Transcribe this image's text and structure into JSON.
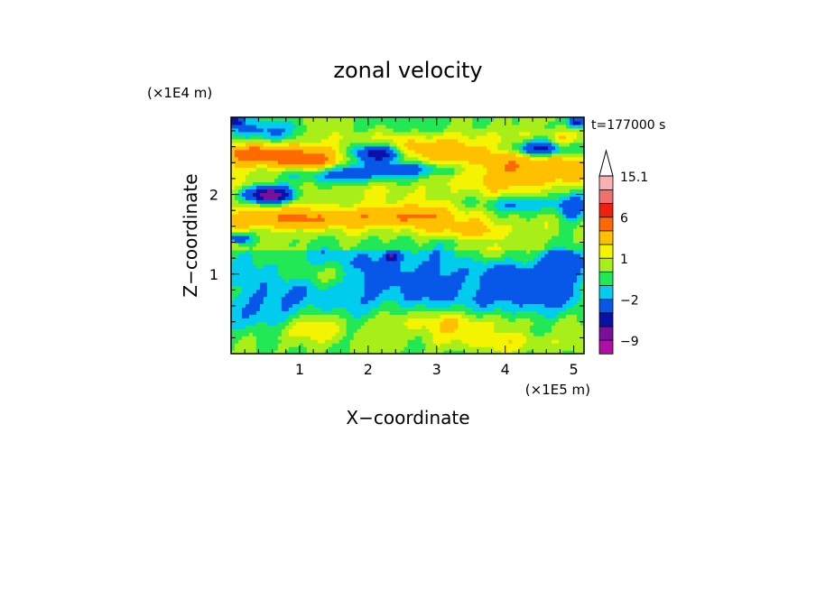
{
  "chart_data": {
    "type": "heatmap",
    "title": "zonal velocity",
    "xlabel": "X−coordinate",
    "ylabel": "Z−coordinate",
    "x_unit": "(×1E5 m)",
    "y_unit": "(×1E4 m)",
    "time_label": "t=177000 s",
    "xlim": [
      0,
      5.15
    ],
    "ylim": [
      0,
      2.97
    ],
    "x_ticks": [
      1,
      2,
      3,
      4,
      5
    ],
    "y_ticks": [
      1,
      2
    ],
    "colorbar": {
      "bands": [
        {
          "min": -99,
          "max": -12,
          "color": "#ee10bb"
        },
        {
          "min": -12,
          "max": -9,
          "color": "#b00fa6"
        },
        {
          "min": -9,
          "max": -6,
          "color": "#7a0f9a"
        },
        {
          "min": -6,
          "max": -4,
          "color": "#0a10a8"
        },
        {
          "min": -4,
          "max": -2,
          "color": "#0757e8"
        },
        {
          "min": -2,
          "max": -1,
          "color": "#00ccee"
        },
        {
          "min": -1,
          "max": 0,
          "color": "#22e855"
        },
        {
          "min": 0,
          "max": 1,
          "color": "#a8ee18"
        },
        {
          "min": 1,
          "max": 2,
          "color": "#f4f400"
        },
        {
          "min": 2,
          "max": 4,
          "color": "#ffc000"
        },
        {
          "min": 4,
          "max": 6,
          "color": "#ff6a00"
        },
        {
          "min": 6,
          "max": 9,
          "color": "#ee2010"
        },
        {
          "min": 9,
          "max": 12,
          "color": "#f07070"
        },
        {
          "min": 12,
          "max": 15.1,
          "color": "#f8b0b0"
        },
        {
          "min": 15.1,
          "max": 99,
          "color": "#ffffff"
        }
      ],
      "labels": [
        "15.1",
        "6",
        "1",
        "−2",
        "−9"
      ]
    },
    "features": [
      {
        "x": 0.35,
        "z": 2.52,
        "sx": 0.9,
        "sz": 0.14,
        "value": 4.5
      },
      {
        "x": 1.15,
        "z": 2.42,
        "sx": 0.5,
        "sz": 0.12,
        "value": 3.0
      },
      {
        "x": 0.85,
        "z": 1.7,
        "sx": 1.0,
        "sz": 0.12,
        "value": 3.5
      },
      {
        "x": 2.55,
        "z": 1.72,
        "sx": 0.85,
        "sz": 0.13,
        "value": 3.5
      },
      {
        "x": 2.95,
        "z": 2.58,
        "sx": 0.7,
        "sz": 0.17,
        "value": 2.2
      },
      {
        "x": 4.25,
        "z": 2.35,
        "sx": 0.85,
        "sz": 0.25,
        "value": 3.5
      },
      {
        "x": 4.8,
        "z": 2.65,
        "sx": 0.2,
        "sz": 0.12,
        "value": 3.0
      },
      {
        "x": 3.4,
        "z": 1.55,
        "sx": 0.7,
        "sz": 0.1,
        "value": 2.0
      },
      {
        "x": 0.55,
        "z": 2.0,
        "sx": 0.35,
        "sz": 0.1,
        "value": -9.0
      },
      {
        "x": 2.15,
        "z": 2.52,
        "sx": 0.35,
        "sz": 0.11,
        "value": -7.0
      },
      {
        "x": 4.55,
        "z": 2.58,
        "sx": 0.5,
        "sz": 0.11,
        "value": -7.0
      },
      {
        "x": 0.45,
        "z": 2.78,
        "sx": 0.45,
        "sz": 0.18,
        "value": -3.5
      },
      {
        "x": 1.55,
        "z": 2.25,
        "sx": 0.75,
        "sz": 0.12,
        "value": -3.2
      },
      {
        "x": 2.65,
        "z": 2.32,
        "sx": 0.95,
        "sz": 0.1,
        "value": -3.3
      },
      {
        "x": 4.95,
        "z": 1.85,
        "sx": 0.25,
        "sz": 0.2,
        "value": -4.0
      },
      {
        "x": 4.2,
        "z": 1.88,
        "sx": 0.55,
        "sz": 0.12,
        "value": -3.0
      },
      {
        "x": 5.05,
        "z": 2.92,
        "sx": 0.15,
        "sz": 0.08,
        "value": -6.0
      },
      {
        "x": 0.05,
        "z": 2.92,
        "sx": 0.12,
        "sz": 0.08,
        "value": -6.0
      },
      {
        "x": 0.1,
        "z": 1.45,
        "sx": 0.18,
        "sz": 0.06,
        "value": -5.0
      },
      {
        "x": 2.35,
        "z": 1.22,
        "sx": 0.1,
        "sz": 0.05,
        "value": -5.0
      },
      {
        "x": 2.7,
        "z": 2.9,
        "sx": 1.6,
        "sz": 0.15,
        "value": -1.5
      },
      {
        "x": 2.6,
        "z": 0.95,
        "sx": 2.2,
        "sz": 0.55,
        "value": -2.5
      },
      {
        "x": 0.5,
        "z": 0.55,
        "sx": 0.45,
        "sz": 0.35,
        "value": -2.0
      },
      {
        "x": 4.4,
        "z": 0.75,
        "sx": 0.7,
        "sz": 0.35,
        "value": -2.0
      },
      {
        "x": 4.8,
        "z": 1.15,
        "sx": 0.35,
        "sz": 0.2,
        "value": -2.5
      },
      {
        "x": 3.2,
        "z": 0.4,
        "sx": 1.3,
        "sz": 0.18,
        "value": 2.5
      },
      {
        "x": 1.0,
        "z": 0.3,
        "sx": 0.55,
        "sz": 0.18,
        "value": 2.2
      },
      {
        "x": 3.8,
        "z": 1.25,
        "sx": 0.6,
        "sz": 0.12,
        "value": 1.8
      },
      {
        "x": 1.3,
        "z": 1.0,
        "sx": 0.5,
        "sz": 0.15,
        "value": 1.7
      },
      {
        "x": 4.0,
        "z": 0.15,
        "sx": 1.2,
        "sz": 0.12,
        "value": 1.5
      }
    ],
    "background": {
      "z_split": 1.3,
      "low_value": 0.0,
      "high_value": 0.9
    }
  }
}
